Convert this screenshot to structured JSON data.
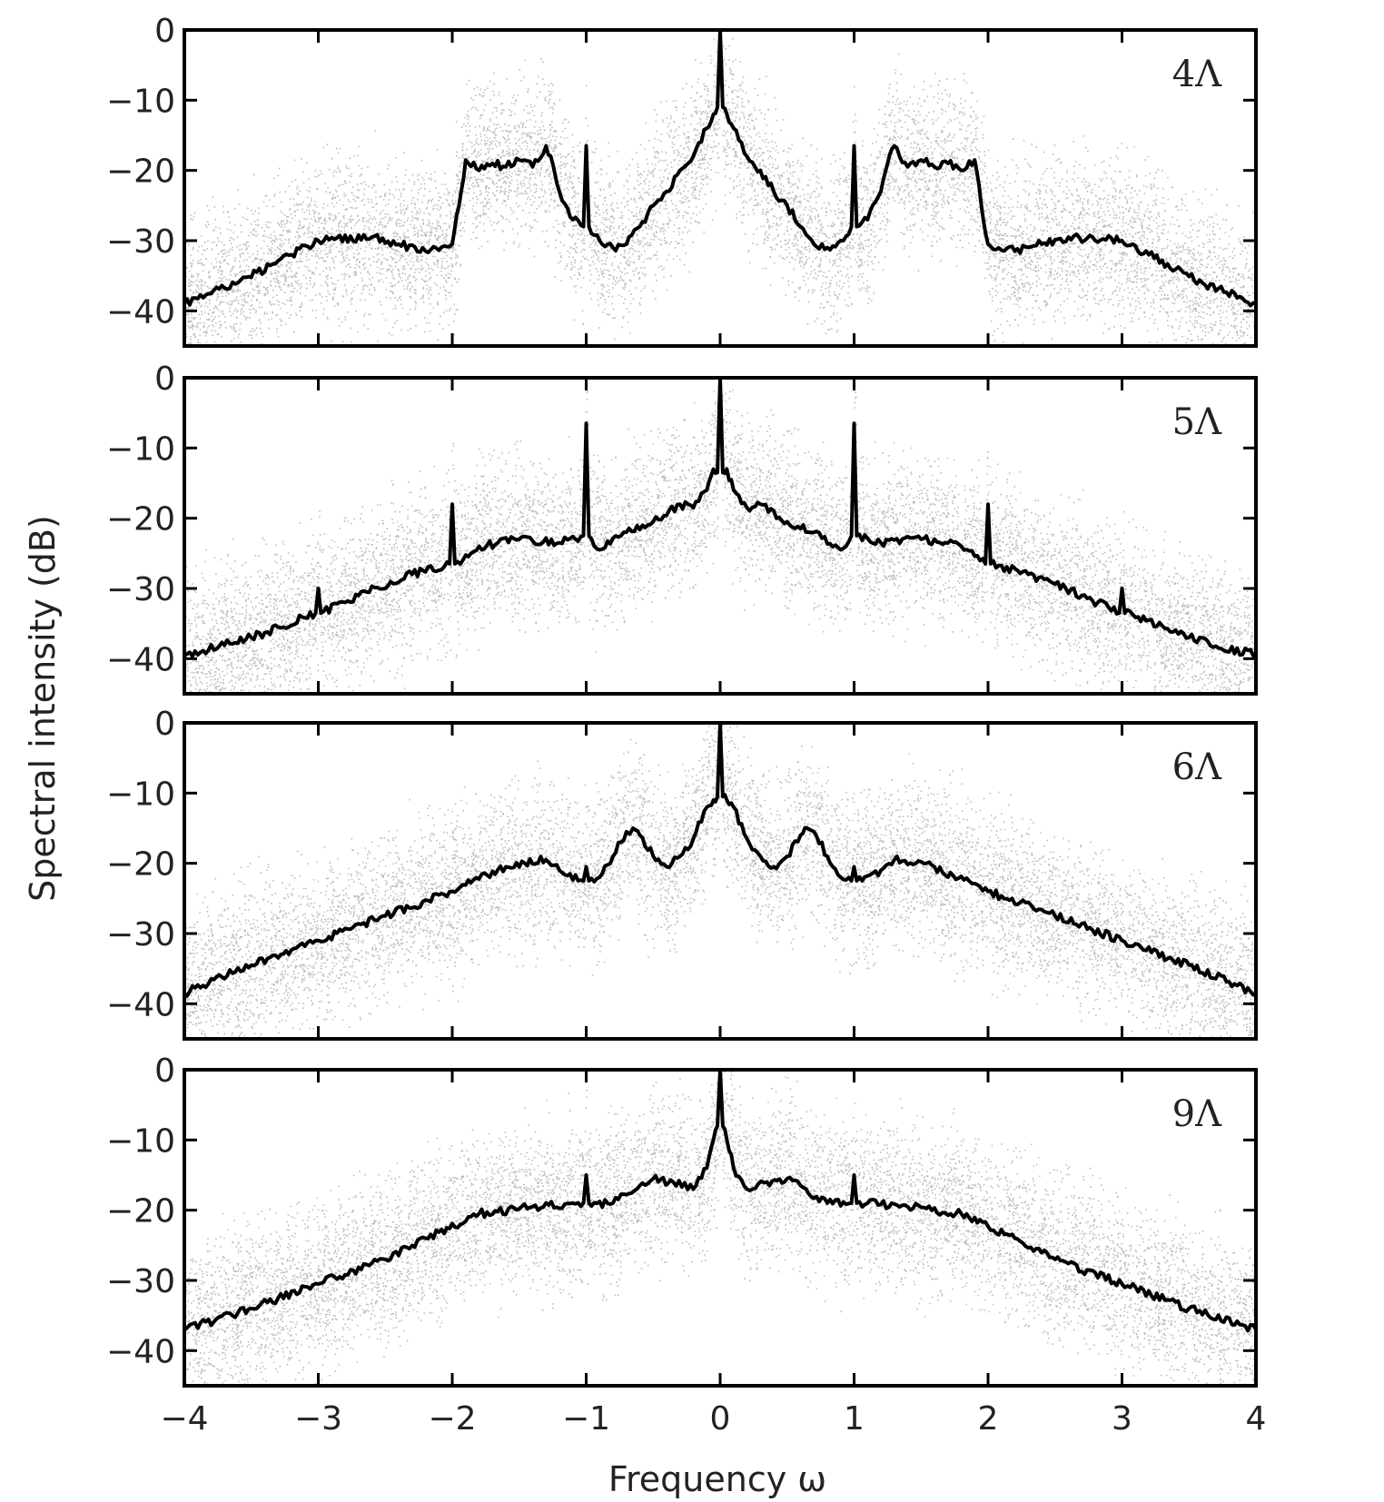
{
  "chart_data": [
    {
      "type": "line",
      "panel_label": "4Λ",
      "xlim": [
        -4,
        4
      ],
      "ylim": [
        -45,
        0
      ],
      "yticks": [
        "0",
        "−10",
        "−20",
        "−30",
        "−40"
      ],
      "ytick_values": [
        0,
        -10,
        -20,
        -30,
        -40
      ],
      "background_scatter": {
        "color": "#bdbdbd",
        "description_hidden": true
      },
      "series": [
        {
          "color": "#000000",
          "x": [
            -4.0,
            -3.6,
            -3.2,
            -3.0,
            -2.6,
            -2.4,
            -2.2,
            -2.0,
            -1.95,
            -1.9,
            -1.8,
            -1.7,
            -1.6,
            -1.5,
            -1.4,
            -1.3,
            -1.25,
            -1.2,
            -1.1,
            -1.02,
            -1.0,
            -0.98,
            -0.9,
            -0.8,
            -0.7,
            -0.6,
            -0.5,
            -0.4,
            -0.3,
            -0.2,
            -0.1,
            -0.05,
            -0.02,
            0.0,
            0.02,
            0.05,
            0.1,
            0.2,
            0.3,
            0.4,
            0.5,
            0.6,
            0.7,
            0.8,
            0.9,
            0.98,
            1.0,
            1.02,
            1.1,
            1.2,
            1.25,
            1.3,
            1.4,
            1.5,
            1.6,
            1.7,
            1.8,
            1.9,
            1.95,
            2.0,
            2.2,
            2.4,
            2.6,
            3.0,
            3.2,
            3.6,
            4.0
          ],
          "y": [
            -39,
            -36,
            -32,
            -30,
            -29.5,
            -30.5,
            -31.5,
            -30.5,
            -25,
            -18.5,
            -20,
            -19,
            -19.5,
            -18.5,
            -19.5,
            -16.5,
            -19,
            -23,
            -27,
            -28,
            -16.5,
            -28,
            -30,
            -31,
            -30.5,
            -28,
            -25,
            -23,
            -20,
            -18,
            -14,
            -12,
            -11,
            0,
            -11,
            -12,
            -14,
            -18,
            -20,
            -23,
            -25,
            -28,
            -30.5,
            -31,
            -30,
            -28,
            -16.5,
            -28,
            -27,
            -23,
            -19,
            -16.5,
            -19.5,
            -18.5,
            -19.5,
            -19,
            -20,
            -18.5,
            -25,
            -30.5,
            -31.5,
            -30.5,
            -29.5,
            -30,
            -32,
            -36,
            -39
          ]
        }
      ]
    },
    {
      "type": "line",
      "panel_label": "5Λ",
      "xlim": [
        -4,
        4
      ],
      "ylim": [
        -45,
        0
      ],
      "yticks": [
        "0",
        "−10",
        "−20",
        "−30",
        "−40"
      ],
      "ytick_values": [
        0,
        -10,
        -20,
        -30,
        -40
      ],
      "series": [
        {
          "color": "#000000",
          "x": [
            -4.0,
            -3.5,
            -3.02,
            -3.0,
            -2.98,
            -2.7,
            -2.3,
            -2.02,
            -2.0,
            -1.98,
            -1.8,
            -1.5,
            -1.2,
            -1.02,
            -1.0,
            -0.98,
            -0.9,
            -0.7,
            -0.5,
            -0.3,
            -0.2,
            -0.1,
            -0.05,
            -0.02,
            0.0,
            0.02,
            0.05,
            0.1,
            0.2,
            0.3,
            0.5,
            0.7,
            0.9,
            0.98,
            1.0,
            1.02,
            1.2,
            1.5,
            1.8,
            1.98,
            2.0,
            2.02,
            2.3,
            2.7,
            2.98,
            3.0,
            3.02,
            3.5,
            4.0
          ],
          "y": [
            -39.5,
            -37,
            -33.5,
            -30,
            -33.5,
            -31,
            -28,
            -26.5,
            -18,
            -26.5,
            -24,
            -23,
            -23.5,
            -22.5,
            -6.5,
            -22.5,
            -24.5,
            -22,
            -20.5,
            -18,
            -18.5,
            -16,
            -13,
            -13.5,
            0,
            -13.5,
            -13,
            -16,
            -18.5,
            -18,
            -20.5,
            -22,
            -24.5,
            -22.5,
            -6.5,
            -22.5,
            -23.5,
            -23,
            -24,
            -26.5,
            -18,
            -26.5,
            -28,
            -31,
            -33.5,
            -30,
            -33.5,
            -37,
            -39.5
          ]
        }
      ]
    },
    {
      "type": "line",
      "panel_label": "6Λ",
      "xlim": [
        -4,
        4
      ],
      "ylim": [
        -45,
        0
      ],
      "yticks": [
        "0",
        "−10",
        "−20",
        "−30",
        "−40"
      ],
      "ytick_values": [
        0,
        -10,
        -20,
        -30,
        -40
      ],
      "series": [
        {
          "color": "#000000",
          "x": [
            -4.0,
            -3.5,
            -3.0,
            -2.5,
            -2.0,
            -1.6,
            -1.3,
            -1.2,
            -1.02,
            -1.0,
            -0.98,
            -0.9,
            -0.8,
            -0.7,
            -0.65,
            -0.6,
            -0.5,
            -0.4,
            -0.3,
            -0.2,
            -0.1,
            -0.05,
            -0.02,
            0.0,
            0.02,
            0.05,
            0.1,
            0.2,
            0.3,
            0.4,
            0.5,
            0.6,
            0.65,
            0.7,
            0.8,
            0.9,
            0.98,
            1.0,
            1.02,
            1.2,
            1.3,
            1.6,
            2.0,
            2.5,
            3.0,
            3.5,
            4.0
          ],
          "y": [
            -38.5,
            -34.5,
            -31,
            -27.5,
            -24,
            -20.5,
            -19.5,
            -21,
            -22.5,
            -20.5,
            -22.5,
            -22,
            -19,
            -15.5,
            -15,
            -16,
            -19,
            -20.5,
            -19,
            -16.5,
            -12,
            -11,
            -10.5,
            0,
            -10.5,
            -11,
            -12,
            -16.5,
            -19,
            -20.5,
            -19,
            -16,
            -15,
            -15.5,
            -19,
            -22,
            -22.5,
            -20.5,
            -22.5,
            -21,
            -19.5,
            -20.5,
            -24,
            -27.5,
            -31,
            -34.5,
            -38.5
          ]
        }
      ]
    },
    {
      "type": "line",
      "panel_label": "9Λ",
      "xlim": [
        -4,
        4
      ],
      "ylim": [
        -45,
        0
      ],
      "yticks": [
        "0",
        "−10",
        "−20",
        "−30",
        "−40"
      ],
      "ytick_values": [
        0,
        -10,
        -20,
        -30,
        -40
      ],
      "series": [
        {
          "color": "#000000",
          "x": [
            -4.0,
            -3.5,
            -3.0,
            -2.5,
            -2.2,
            -1.8,
            -1.4,
            -1.1,
            -1.02,
            -1.0,
            -0.98,
            -0.8,
            -0.6,
            -0.5,
            -0.35,
            -0.2,
            -0.1,
            -0.05,
            -0.02,
            0.0,
            0.02,
            0.05,
            0.1,
            0.2,
            0.35,
            0.5,
            0.6,
            0.8,
            0.98,
            1.0,
            1.02,
            1.1,
            1.4,
            1.8,
            2.2,
            2.5,
            3.0,
            3.5,
            4.0
          ],
          "y": [
            -37,
            -34,
            -30.5,
            -27,
            -24,
            -20.5,
            -19.5,
            -19,
            -19,
            -15,
            -19,
            -19,
            -16.5,
            -15.5,
            -16,
            -17,
            -14,
            -10,
            -8,
            0,
            -8,
            -10,
            -14,
            -17,
            -16,
            -15.5,
            -16.5,
            -19,
            -19,
            -15,
            -19,
            -19,
            -19.5,
            -20.5,
            -24,
            -27,
            -30.5,
            -34,
            -37
          ]
        }
      ]
    }
  ],
  "x_axis": {
    "label": "Frequency  ω",
    "ticks": [
      "−4",
      "−3",
      "−2",
      "−1",
      "0",
      "1",
      "2",
      "3",
      "4"
    ],
    "tick_values": [
      -4,
      -3,
      -2,
      -1,
      0,
      1,
      2,
      3,
      4
    ]
  },
  "y_axis": {
    "label": "Spectral intensity (dB)"
  },
  "colors": {
    "line": "#000000",
    "scatter": "#bdbdbd",
    "frame": "#000000"
  }
}
